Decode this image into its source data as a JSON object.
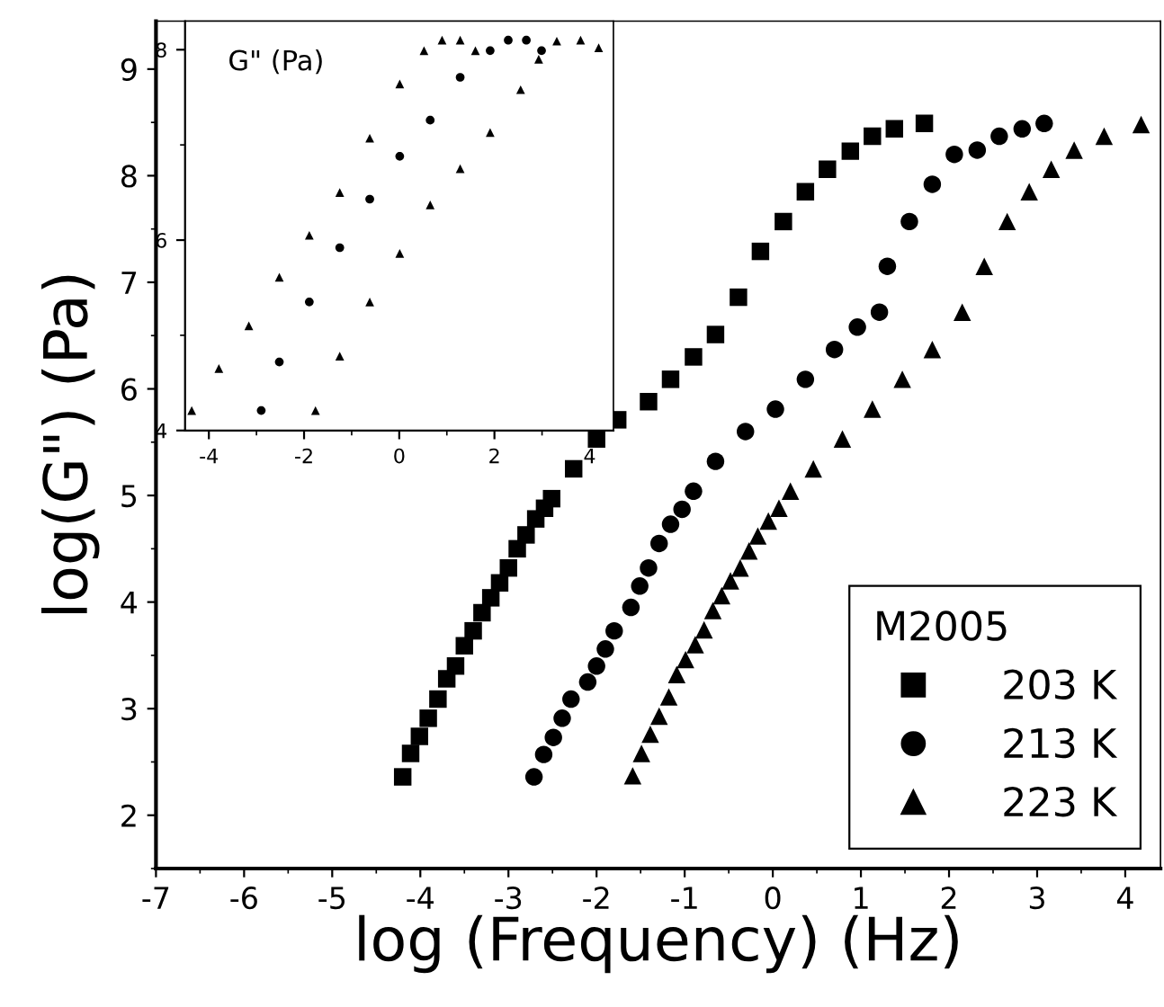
{
  "chart_data": [
    {
      "type": "scatter",
      "xlabel": "log (Frequency) (Hz)",
      "ylabel": "log(G\") (Pa)",
      "legend_title": "M2005",
      "legend": "bottom right",
      "xlim": [
        -7,
        4.4
      ],
      "ylim": [
        1.5,
        9.45
      ],
      "xticks": [
        -7,
        -6,
        -5,
        -4,
        -3,
        -2,
        -1,
        0,
        1,
        2,
        3,
        4
      ],
      "yticks": [
        2,
        3,
        4,
        5,
        6,
        7,
        8,
        9
      ],
      "grid": false,
      "series": [
        {
          "name": "203 K",
          "color": "#000000",
          "marker": "square",
          "x": [
            -4.2,
            -4.11,
            -4.01,
            -3.91,
            -3.8,
            -3.7,
            -3.6,
            -3.5,
            -3.4,
            -3.3,
            -3.2,
            -3.1,
            -3.0,
            -2.9,
            -2.8,
            -2.69,
            -2.59,
            -2.51,
            -2.26,
            -2.0,
            -1.76,
            -1.41,
            -1.16,
            -0.9,
            -0.65,
            -0.39,
            -0.14,
            0.12,
            0.37,
            0.62,
            0.88,
            1.13,
            1.38,
            1.72
          ],
          "values": [
            2.36,
            2.58,
            2.74,
            2.91,
            3.09,
            3.28,
            3.4,
            3.59,
            3.73,
            3.9,
            4.04,
            4.18,
            4.32,
            4.5,
            4.63,
            4.78,
            4.88,
            4.97,
            5.25,
            5.53,
            5.71,
            5.88,
            6.09,
            6.3,
            6.51,
            6.86,
            7.29,
            7.57,
            7.85,
            8.06,
            8.23,
            8.37,
            8.44,
            8.49
          ]
        },
        {
          "name": "213 K",
          "color": "#000000",
          "marker": "circle",
          "x": [
            -2.71,
            -2.6,
            -2.49,
            -2.39,
            -2.29,
            -2.1,
            -2.0,
            -1.9,
            -1.8,
            -1.61,
            -1.51,
            -1.41,
            -1.29,
            -1.16,
            -1.03,
            -0.9,
            -0.65,
            -0.31,
            0.03,
            0.37,
            0.7,
            0.96,
            1.21,
            1.3,
            1.55,
            1.81,
            2.06,
            2.32,
            2.57,
            2.83,
            3.08
          ],
          "values": [
            2.36,
            2.57,
            2.73,
            2.91,
            3.09,
            3.25,
            3.4,
            3.56,
            3.73,
            3.95,
            4.15,
            4.32,
            4.55,
            4.73,
            4.87,
            5.04,
            5.32,
            5.6,
            5.81,
            6.09,
            6.37,
            6.58,
            6.72,
            7.15,
            7.57,
            7.92,
            8.2,
            8.24,
            8.37,
            8.44,
            8.49
          ]
        },
        {
          "name": "223 K",
          "color": "#000000",
          "marker": "triangle",
          "x": [
            -1.59,
            -1.49,
            -1.39,
            -1.29,
            -1.18,
            -1.09,
            -0.99,
            -0.88,
            -0.78,
            -0.68,
            -0.58,
            -0.48,
            -0.37,
            -0.27,
            -0.17,
            -0.05,
            0.07,
            0.2,
            0.46,
            0.79,
            1.13,
            1.47,
            1.81,
            2.15,
            2.4,
            2.66,
            2.91,
            3.16,
            3.42,
            3.76,
            4.18
          ],
          "values": [
            2.37,
            2.58,
            2.76,
            2.93,
            3.11,
            3.32,
            3.46,
            3.6,
            3.74,
            3.92,
            4.06,
            4.2,
            4.32,
            4.48,
            4.62,
            4.76,
            4.88,
            5.04,
            5.25,
            5.53,
            5.81,
            6.09,
            6.37,
            6.72,
            7.15,
            7.57,
            7.85,
            8.06,
            8.24,
            8.37,
            8.48
          ]
        }
      ]
    },
    {
      "type": "scatter",
      "annotations": [
        "G\" (Pa)"
      ],
      "legend": false,
      "xlim": [
        -4.5,
        4.5
      ],
      "ylim": [
        4,
        8.3
      ],
      "xticks": [
        -4,
        -2,
        0,
        2,
        4
      ],
      "yticks": [
        4,
        6,
        8
      ],
      "grid": false,
      "series": [
        {
          "color": "#000000",
          "marker": "triangle",
          "x": [
            -4.36,
            -3.79,
            -3.16,
            -2.52,
            -1.89,
            -1.25,
            -0.62,
            0.01,
            0.52,
            0.9,
            1.28,
            1.6
          ],
          "values": [
            4.21,
            4.65,
            5.1,
            5.61,
            6.05,
            6.5,
            7.07,
            7.64,
            7.99,
            8.1,
            8.1,
            7.99
          ]
        },
        {
          "color": "#000000",
          "marker": "circle",
          "x": [
            -2.9,
            -2.52,
            -1.89,
            -1.25,
            -0.62,
            0.01,
            0.65,
            1.28,
            1.91,
            2.29,
            2.67,
            2.99
          ],
          "values": [
            4.21,
            4.72,
            5.35,
            5.92,
            6.43,
            6.88,
            7.26,
            7.71,
            7.99,
            8.1,
            8.1,
            7.99
          ]
        },
        {
          "color": "#000000",
          "marker": "triangle",
          "x": [
            -1.76,
            -1.25,
            -0.62,
            0.01,
            0.65,
            1.28,
            1.91,
            2.55,
            2.93,
            3.31,
            3.81,
            4.19
          ],
          "values": [
            4.21,
            4.78,
            5.35,
            5.86,
            6.37,
            6.75,
            7.13,
            7.58,
            7.9,
            8.09,
            8.1,
            8.02
          ]
        }
      ]
    }
  ]
}
